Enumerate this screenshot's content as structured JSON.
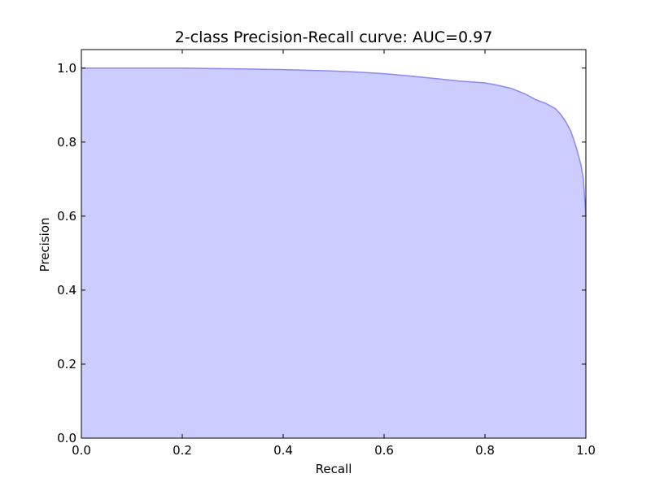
{
  "chart_data": {
    "type": "area",
    "title": "2-class Precision-Recall curve: AUC=0.97",
    "xlabel": "Recall",
    "ylabel": "Precision",
    "xlim": [
      0.0,
      1.0
    ],
    "ylim": [
      0.0,
      1.05
    ],
    "xticks": [
      0.0,
      0.2,
      0.4,
      0.6,
      0.8,
      1.0
    ],
    "yticks": [
      0.0,
      0.2,
      0.4,
      0.6,
      0.8,
      1.0
    ],
    "xtick_labels": [
      "0.0",
      "0.2",
      "0.4",
      "0.6",
      "0.8",
      "1.0"
    ],
    "ytick_labels": [
      "0.0",
      "0.2",
      "0.4",
      "0.6",
      "0.8",
      "1.0"
    ],
    "grid": false,
    "colors": {
      "fill": "#ccccff",
      "line": "#8a8af0"
    },
    "series": [
      {
        "x": [
          0.0,
          0.1,
          0.2,
          0.25,
          0.3,
          0.35,
          0.4,
          0.45,
          0.5,
          0.55,
          0.6,
          0.65,
          0.7,
          0.75,
          0.8,
          0.82,
          0.85,
          0.88,
          0.9,
          0.92,
          0.94,
          0.95,
          0.96,
          0.97,
          0.98,
          0.99,
          0.995,
          1.0
        ],
        "y": [
          1.0,
          1.0,
          1.0,
          0.999,
          0.998,
          0.997,
          0.996,
          0.994,
          0.992,
          0.989,
          0.985,
          0.979,
          0.972,
          0.965,
          0.96,
          0.955,
          0.946,
          0.93,
          0.915,
          0.905,
          0.89,
          0.875,
          0.855,
          0.83,
          0.79,
          0.74,
          0.7,
          0.6
        ]
      }
    ]
  }
}
